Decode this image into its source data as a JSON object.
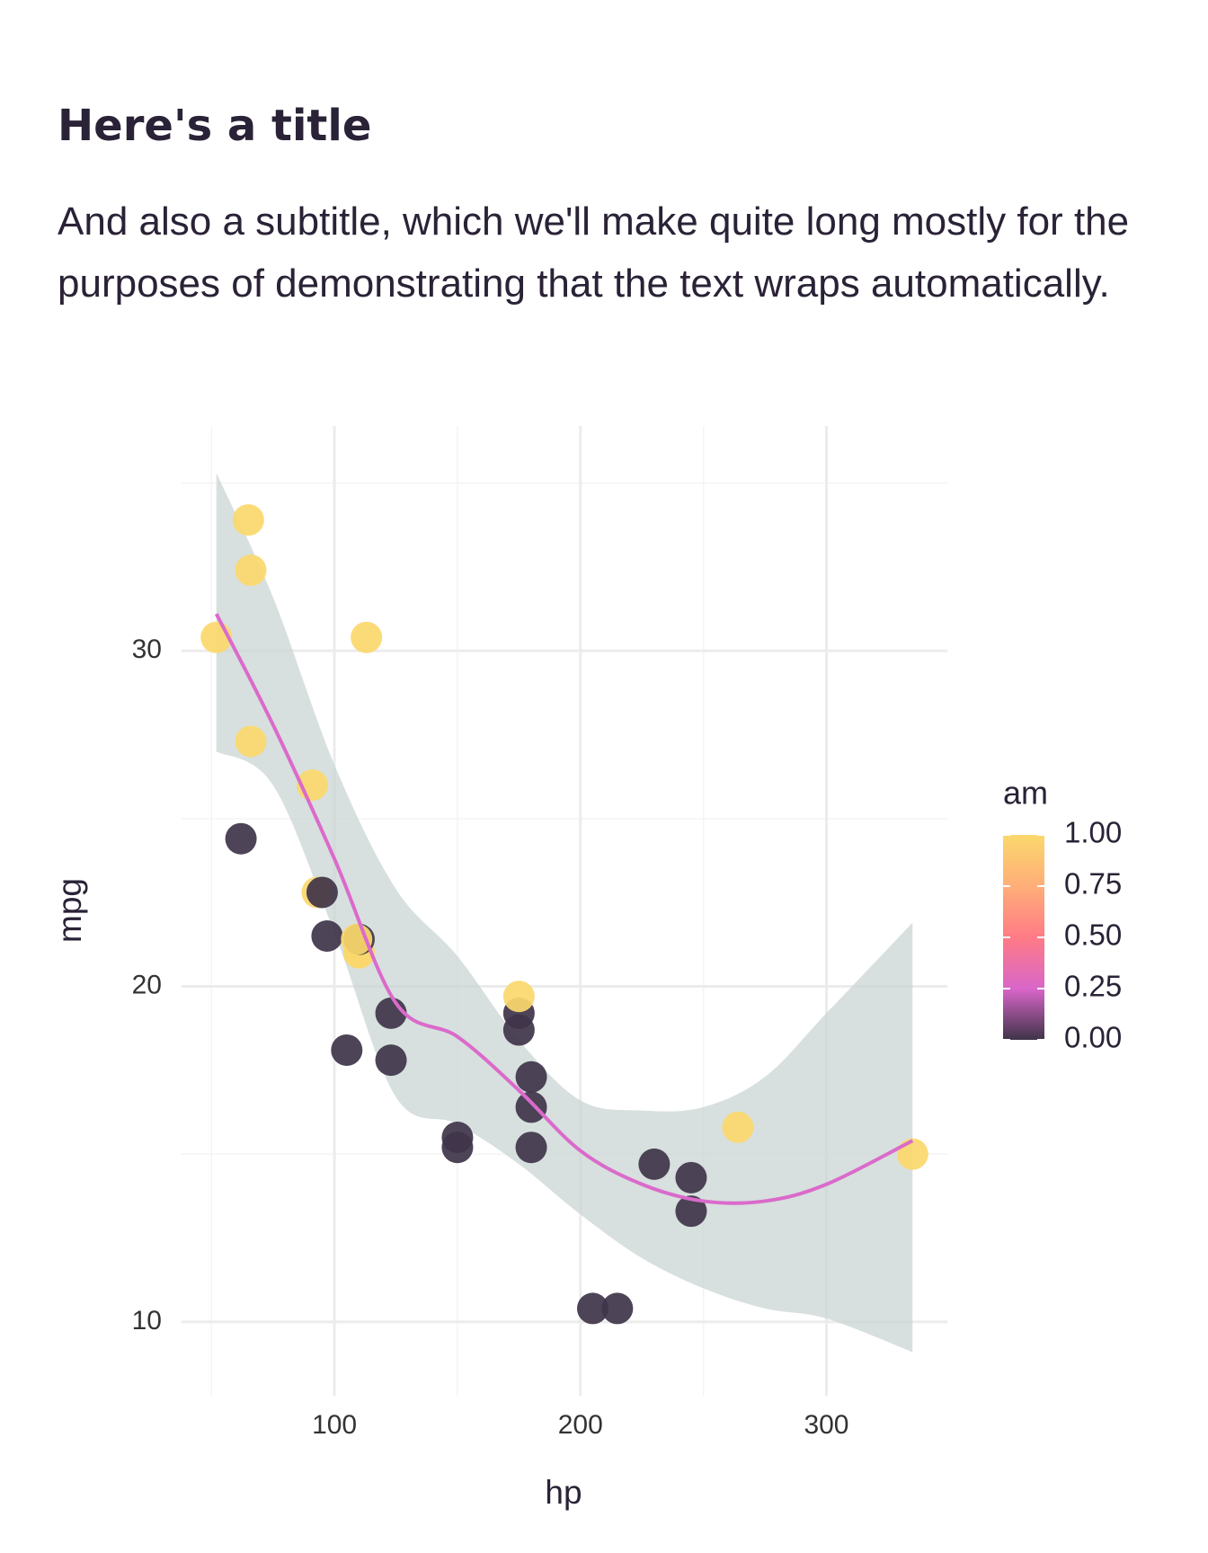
{
  "chart_data": {
    "type": "scatter",
    "title": "Here's a title",
    "subtitle": "And also a subtitle, which we'll make quite long mostly for the purposes of demonstrating that the text wraps automatically.",
    "x_label": "hp",
    "y_label": "mpg",
    "x": [
      110,
      110,
      93,
      110,
      175,
      105,
      245,
      62,
      95,
      123,
      123,
      180,
      180,
      180,
      205,
      215,
      230,
      66,
      52,
      65,
      97,
      150,
      150,
      245,
      175,
      66,
      91,
      113,
      264,
      175,
      335,
      109
    ],
    "y": [
      21.0,
      21.0,
      22.8,
      21.4,
      18.7,
      18.1,
      14.3,
      24.4,
      22.8,
      19.2,
      17.8,
      16.4,
      17.3,
      15.2,
      10.4,
      10.4,
      14.7,
      32.4,
      30.4,
      33.9,
      21.5,
      15.5,
      15.2,
      13.3,
      19.2,
      27.3,
      26.0,
      30.4,
      15.8,
      19.7,
      15.0,
      21.4
    ],
    "am": [
      1,
      1,
      1,
      0,
      0,
      0,
      0,
      0,
      0,
      0,
      0,
      0,
      0,
      0,
      0,
      0,
      0,
      1,
      1,
      1,
      0,
      0,
      0,
      0,
      0,
      1,
      1,
      1,
      1,
      1,
      1,
      1
    ],
    "xlim": [
      37.85,
      349.15
    ],
    "ylim": [
      7.8,
      36.7
    ],
    "xticks": [
      100,
      200,
      300
    ],
    "yticks": [
      10,
      20,
      30
    ],
    "xminor": [
      50,
      150,
      250
    ],
    "yminor": [
      15,
      25,
      35
    ],
    "grid": true,
    "colorbar": {
      "title": "am",
      "lim": [
        0,
        1
      ],
      "ticks": [
        {
          "value": 1,
          "label": "1.00"
        },
        {
          "value": 0.75,
          "label": "0.75"
        },
        {
          "value": 0.5,
          "label": "0.50"
        },
        {
          "value": 0.25,
          "label": "0.25"
        },
        {
          "value": 0,
          "label": "0.00"
        }
      ],
      "colors": [
        "#3f3449",
        "#d966c9",
        "#ff7b86",
        "#ffae78",
        "#fbd86c"
      ]
    },
    "smooth": {
      "color": "#db6acb",
      "fill": "#c9d6d3",
      "x": [
        52,
        75,
        100,
        125,
        150,
        175,
        200,
        225,
        250,
        275,
        300,
        335
      ],
      "y": [
        31.1,
        27.8,
        23.8,
        19.5,
        18.5,
        16.9,
        15.1,
        14.1,
        13.6,
        13.6,
        14.1,
        15.4
      ],
      "lower": [
        27.0,
        26.0,
        21.6,
        16.7,
        15.9,
        14.7,
        13.2,
        11.9,
        11.0,
        10.4,
        10.1,
        9.1
      ],
      "upper": [
        35.3,
        31.6,
        26.6,
        22.9,
        20.9,
        18.4,
        16.6,
        16.3,
        16.4,
        17.3,
        19.2,
        21.9
      ]
    }
  }
}
